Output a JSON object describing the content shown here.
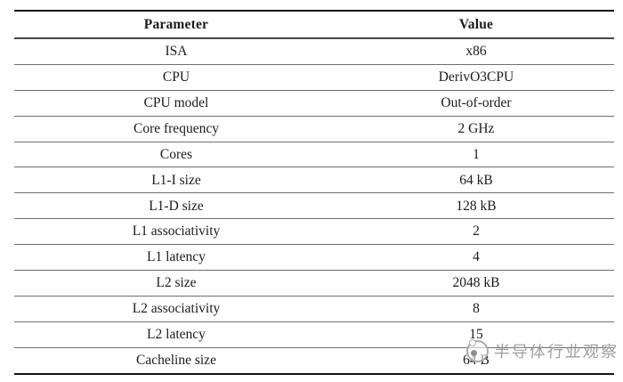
{
  "table": {
    "headers": [
      "Parameter",
      "Value"
    ],
    "rows": [
      {
        "parameter": "ISA",
        "value": "x86"
      },
      {
        "parameter": "CPU",
        "value": "DerivO3CPU"
      },
      {
        "parameter": "CPU model",
        "value": "Out-of-order"
      },
      {
        "parameter": "Core frequency",
        "value": "2 GHz"
      },
      {
        "parameter": "Cores",
        "value": "1"
      },
      {
        "parameter": "L1-I size",
        "value": "64 kB"
      },
      {
        "parameter": "L1-D size",
        "value": "128 kB"
      },
      {
        "parameter": "L1 associativity",
        "value": "2"
      },
      {
        "parameter": "L1 latency",
        "value": "4"
      },
      {
        "parameter": "L2 size",
        "value": "2048 kB"
      },
      {
        "parameter": "L2 associativity",
        "value": "8"
      },
      {
        "parameter": "L2 latency",
        "value": "15"
      },
      {
        "parameter": "Cacheline size",
        "value": "64 B"
      }
    ]
  },
  "watermark": {
    "text": "半导体行业观察",
    "logo_icon": "circle-logo-icon"
  },
  "colors": {
    "background": "#ffffff",
    "text": "#1b1b1b",
    "rule_dark": "#161616",
    "rule_gray": "#6f6f6f",
    "watermark_gray": "#949494"
  }
}
